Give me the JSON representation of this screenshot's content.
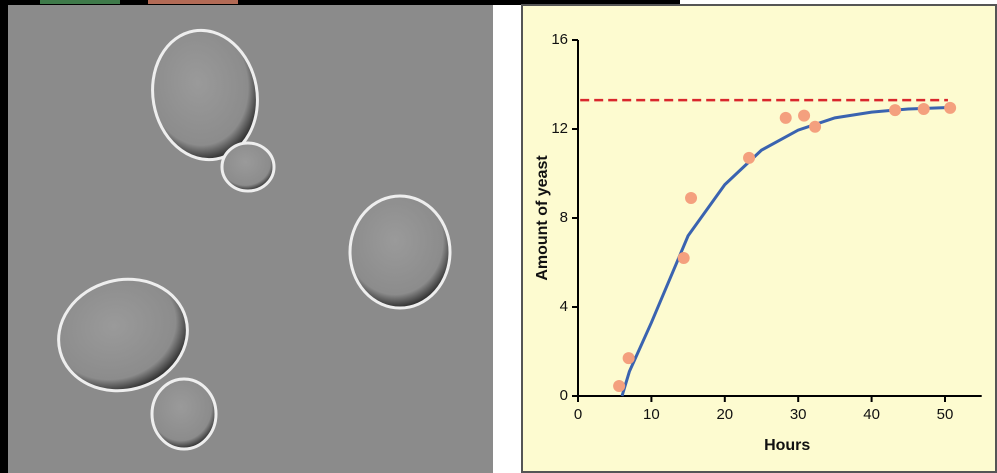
{
  "chart_data": {
    "type": "scatter",
    "xlabel": "Hours",
    "ylabel": "Amount of yeast",
    "xlim": [
      0,
      55
    ],
    "ylim": [
      0,
      16
    ],
    "xticks": [
      0,
      10,
      20,
      30,
      40,
      50
    ],
    "yticks": [
      0,
      4,
      8,
      12,
      16
    ],
    "points": {
      "color": "#f4a07e",
      "x": [
        5.6,
        6.9,
        14.4,
        15.4,
        23.3,
        28.3,
        30.8,
        32.3,
        43.2,
        47.1,
        50.7
      ],
      "values": [
        0.45,
        1.7,
        6.2,
        8.9,
        10.7,
        12.5,
        12.6,
        12.1,
        12.85,
        12.9,
        12.95
      ]
    },
    "fit": {
      "color": "#3a63b0",
      "x": [
        6,
        7,
        10,
        15,
        20,
        25,
        30,
        35,
        40,
        45,
        51
      ],
      "values": [
        0,
        1.1,
        3.3,
        7.2,
        9.5,
        11.05,
        11.95,
        12.5,
        12.76,
        12.9,
        12.97
      ]
    },
    "reference_line": {
      "color": "#d9272d",
      "value": 13.3,
      "x": [
        0.3,
        50.4
      ]
    }
  }
}
